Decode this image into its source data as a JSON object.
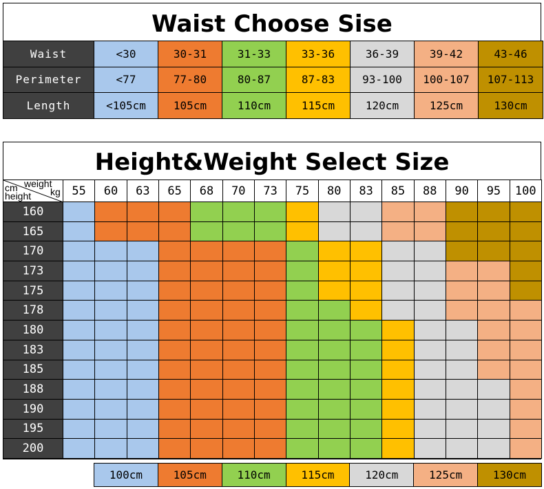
{
  "waist_chart": {
    "title": "Waist Choose Sise",
    "rows": [
      {
        "label": "Waist",
        "values": [
          "<30",
          "30-31",
          "31-33",
          "33-36",
          "36-39",
          "39-42",
          "43-46"
        ]
      },
      {
        "label": "Perimeter",
        "values": [
          "<77",
          "77-80",
          "80-87",
          "87-83",
          "93-100",
          "100-107",
          "107-113"
        ]
      },
      {
        "label": "Length",
        "values": [
          "<105cm",
          "105cm",
          "110cm",
          "115cm",
          "120cm",
          "125cm",
          "130cm"
        ]
      }
    ]
  },
  "size_chart": {
    "title": "Height&Weight Select Size",
    "corner": {
      "weight": "weight",
      "kg": "kg",
      "cm": "cm",
      "height": "height"
    },
    "weights": [
      "55",
      "60",
      "63",
      "65",
      "68",
      "70",
      "73",
      "75",
      "80",
      "83",
      "85",
      "88",
      "90",
      "95",
      "100"
    ],
    "heights": [
      "160",
      "165",
      "170",
      "173",
      "175",
      "178",
      "180",
      "183",
      "185",
      "188",
      "190",
      "195",
      "200"
    ],
    "grid": [
      [
        "b",
        "o",
        "o",
        "o",
        "g",
        "g",
        "g",
        "y",
        "w",
        "w",
        "p",
        "p",
        "k",
        "k",
        "k"
      ],
      [
        "b",
        "o",
        "o",
        "o",
        "g",
        "g",
        "g",
        "y",
        "w",
        "w",
        "p",
        "p",
        "k",
        "k",
        "k"
      ],
      [
        "b",
        "b",
        "b",
        "o",
        "o",
        "o",
        "o",
        "g",
        "y",
        "y",
        "w",
        "w",
        "k",
        "k",
        "k"
      ],
      [
        "b",
        "b",
        "b",
        "o",
        "o",
        "o",
        "o",
        "g",
        "y",
        "y",
        "w",
        "w",
        "p",
        "p",
        "k"
      ],
      [
        "b",
        "b",
        "b",
        "o",
        "o",
        "o",
        "o",
        "g",
        "y",
        "y",
        "w",
        "w",
        "p",
        "p",
        "k"
      ],
      [
        "b",
        "b",
        "b",
        "o",
        "o",
        "o",
        "o",
        "g",
        "g",
        "y",
        "w",
        "w",
        "p",
        "p",
        "p"
      ],
      [
        "b",
        "b",
        "b",
        "o",
        "o",
        "o",
        "o",
        "g",
        "g",
        "g",
        "y",
        "w",
        "w",
        "p",
        "p"
      ],
      [
        "b",
        "b",
        "b",
        "o",
        "o",
        "o",
        "o",
        "g",
        "g",
        "g",
        "y",
        "w",
        "w",
        "p",
        "p"
      ],
      [
        "b",
        "b",
        "b",
        "o",
        "o",
        "o",
        "o",
        "g",
        "g",
        "g",
        "y",
        "w",
        "w",
        "p",
        "p"
      ],
      [
        "b",
        "b",
        "b",
        "o",
        "o",
        "o",
        "o",
        "g",
        "g",
        "g",
        "y",
        "w",
        "w",
        "w",
        "p"
      ],
      [
        "b",
        "b",
        "b",
        "o",
        "o",
        "o",
        "o",
        "g",
        "g",
        "g",
        "y",
        "w",
        "w",
        "w",
        "p"
      ],
      [
        "b",
        "b",
        "b",
        "o",
        "o",
        "o",
        "o",
        "g",
        "g",
        "g",
        "y",
        "w",
        "w",
        "w",
        "p"
      ],
      [
        "b",
        "b",
        "b",
        "o",
        "o",
        "o",
        "o",
        "g",
        "g",
        "g",
        "y",
        "w",
        "w",
        "w",
        "p"
      ]
    ],
    "legend": [
      {
        "label": "100cm",
        "color": "b"
      },
      {
        "label": "105cm",
        "color": "o"
      },
      {
        "label": "110cm",
        "color": "g"
      },
      {
        "label": "115cm",
        "color": "y"
      },
      {
        "label": "120cm",
        "color": "w"
      },
      {
        "label": "125cm",
        "color": "p"
      },
      {
        "label": "130cm",
        "color": "k"
      }
    ]
  },
  "colors": {
    "b": "#a9c8ec",
    "o": "#ee7b30",
    "g": "#92d050",
    "y": "#ffc000",
    "w": "#d8d8d8",
    "p": "#f4b084",
    "k": "#bf9000",
    "dark": "#404040"
  }
}
